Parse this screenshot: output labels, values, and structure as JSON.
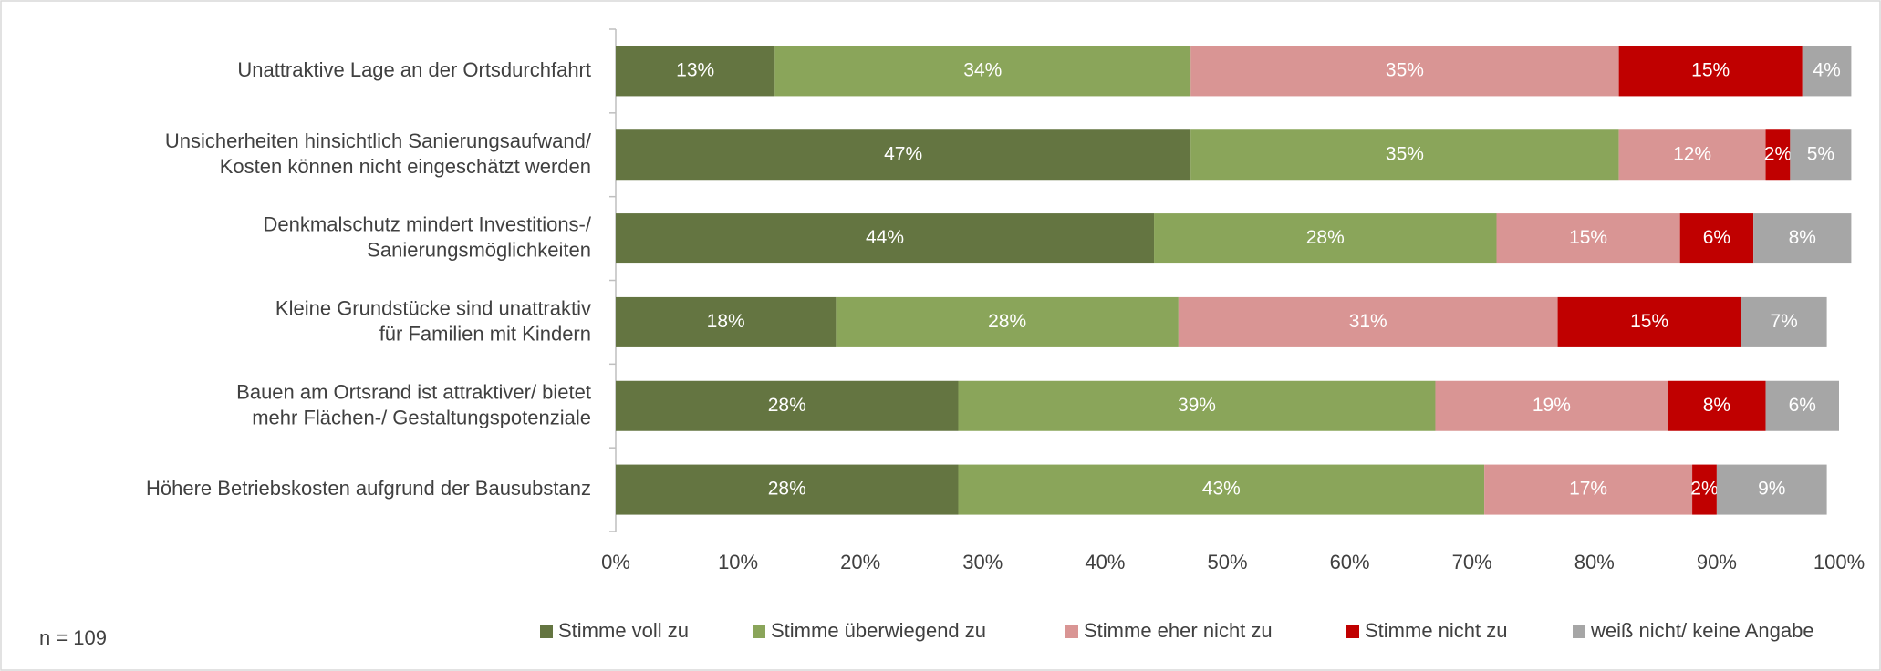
{
  "chart_data": {
    "type": "stacked-bar-horizontal",
    "categories": [
      [
        "Unattraktive Lage an der Ortsdurchfahrt"
      ],
      [
        "Unsicherheiten hinsichtlich Sanierungsaufwand/",
        "Kosten können nicht eingeschätzt werden"
      ],
      [
        "Denkmalschutz mindert Investitions-/",
        "Sanierungsmöglichkeiten"
      ],
      [
        "Kleine Grundstücke sind unattraktiv",
        "für Familien mit Kindern"
      ],
      [
        "Bauen am Ortsrand ist attraktiver/ bietet",
        "mehr Flächen-/ Gestaltungspotenziale"
      ],
      [
        "Höhere Betriebskosten aufgrund der Bausubstanz"
      ]
    ],
    "series": [
      {
        "name": "Stimme voll zu",
        "color": "#647541",
        "values": [
          13,
          47,
          44,
          18,
          28,
          28
        ],
        "value_labels": [
          "13%",
          "47%",
          "44%",
          "18%",
          "28%",
          "28%"
        ]
      },
      {
        "name": "Stimme überwiegend zu",
        "color": "#8aa55a",
        "values": [
          34,
          35,
          28,
          28,
          39,
          43
        ],
        "value_labels": [
          "34%",
          "35%",
          "28%",
          "28%",
          "39%",
          "43%"
        ]
      },
      {
        "name": "Stimme eher nicht zu",
        "color": "#d99594",
        "values": [
          35,
          12,
          15,
          31,
          19,
          17
        ],
        "value_labels": [
          "35%",
          "12%",
          "15%",
          "31%",
          "19%",
          "17%"
        ]
      },
      {
        "name": "Stimme nicht zu",
        "color": "#c00000",
        "values": [
          15,
          2,
          6,
          15,
          8,
          2
        ],
        "value_labels": [
          "15%",
          "2%",
          "6%",
          "15%",
          "8%",
          "2%"
        ]
      },
      {
        "name": "weiß nicht/ keine Angabe",
        "color": "#a6a6a6",
        "values": [
          4,
          5,
          8,
          7,
          6,
          9
        ],
        "value_labels": [
          "4%",
          "5%",
          "8%",
          "7%",
          "6%",
          "9%"
        ]
      }
    ],
    "xlim": [
      0,
      100
    ],
    "xticks": [
      {
        "value": 0,
        "label": "0%"
      },
      {
        "value": 10,
        "label": "10%"
      },
      {
        "value": 20,
        "label": "20%"
      },
      {
        "value": 30,
        "label": "30%"
      },
      {
        "value": 40,
        "label": "40%"
      },
      {
        "value": 50,
        "label": "50%"
      },
      {
        "value": 60,
        "label": "60%"
      },
      {
        "value": 70,
        "label": "70%"
      },
      {
        "value": 80,
        "label": "80%"
      },
      {
        "value": 90,
        "label": "90%"
      },
      {
        "value": 100,
        "label": "100%"
      }
    ],
    "annotation": "n = 109",
    "legend": "bottom"
  }
}
